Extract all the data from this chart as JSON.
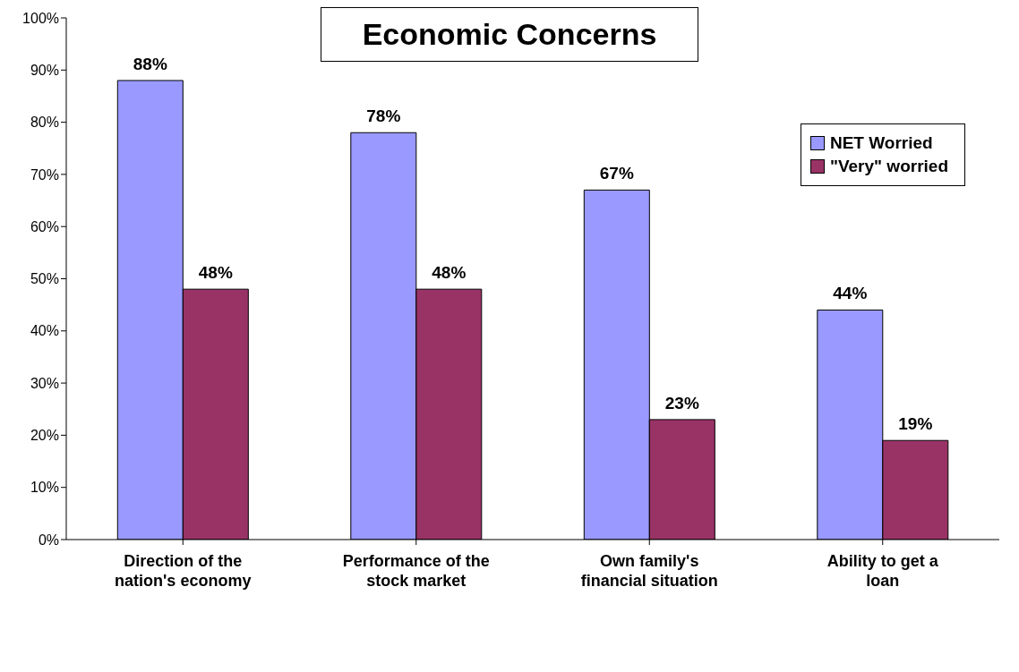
{
  "chart_data": {
    "type": "bar",
    "title": "Economic Concerns",
    "categories": [
      "Direction of the nation's economy",
      "Performance of the stock market",
      "Own family's financial situation",
      "Ability to get a loan"
    ],
    "series": [
      {
        "name": "NET Worried",
        "color": "#9999ff",
        "values": [
          88,
          78,
          67,
          44
        ],
        "value_labels": [
          "88%",
          "78%",
          "67%",
          "44%"
        ]
      },
      {
        "name": "\"Very\" worried",
        "color": "#993366",
        "values": [
          48,
          48,
          23,
          19
        ],
        "value_labels": [
          "48%",
          "48%",
          "23%",
          "19%"
        ]
      }
    ],
    "ylim": [
      0,
      100
    ],
    "yticks": [
      {
        "value": 0,
        "label": "0%"
      },
      {
        "value": 10,
        "label": "10%"
      },
      {
        "value": 20,
        "label": "20%"
      },
      {
        "value": 30,
        "label": "30%"
      },
      {
        "value": 40,
        "label": "40%"
      },
      {
        "value": 50,
        "label": "50%"
      },
      {
        "value": 60,
        "label": "60%"
      },
      {
        "value": 70,
        "label": "70%"
      },
      {
        "value": 80,
        "label": "80%"
      },
      {
        "value": 90,
        "label": "90%"
      },
      {
        "value": 100,
        "label": "100%"
      }
    ],
    "grid": false,
    "legend": "top right"
  }
}
